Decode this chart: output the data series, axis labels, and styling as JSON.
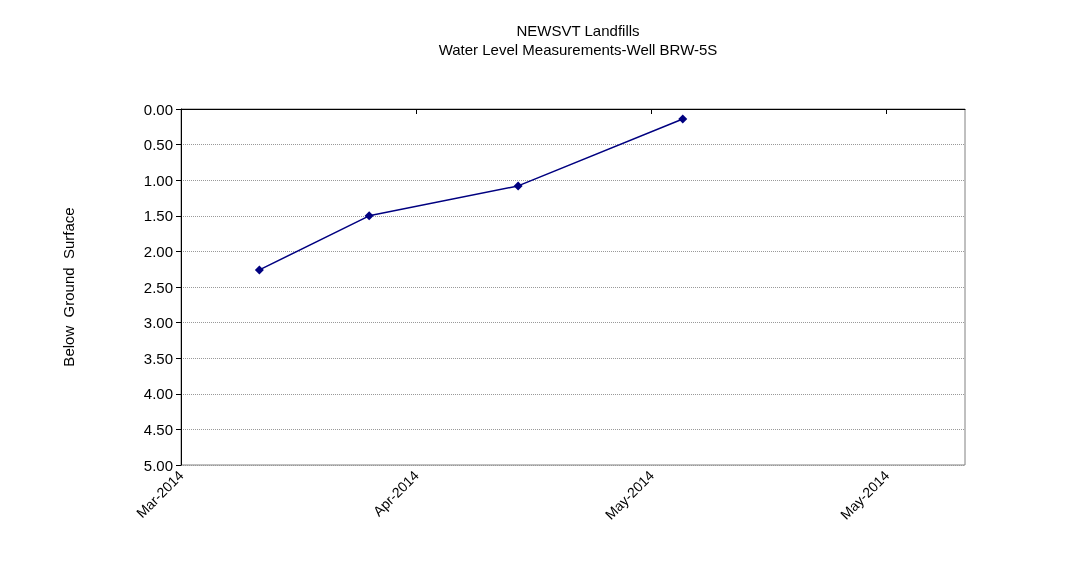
{
  "chart_data": {
    "type": "line",
    "title": "NEWSVT Landfills",
    "subtitle": "Water Level Measurements-Well BRW-5S",
    "ylabel": "Below  Ground  Surface",
    "x": [
      "2014-03-12",
      "2014-03-26",
      "2014-04-14",
      "2014-05-05"
    ],
    "series": [
      {
        "color": "#000080",
        "values": [
          2.26,
          1.5,
          1.08,
          0.14
        ]
      }
    ],
    "xlim": [
      "2014-03-02",
      "2014-06-10"
    ],
    "xticks": [
      {
        "value": "2014-03-02",
        "label": "Mar-2014"
      },
      {
        "value": "2014-04-01",
        "label": "Apr-2014"
      },
      {
        "value": "2014-05-01",
        "label": "May-2014"
      },
      {
        "value": "2014-05-31",
        "label": "May-2014"
      }
    ],
    "ylim": [
      5,
      0
    ],
    "yticks": [
      {
        "value": 0,
        "label": "0.00"
      },
      {
        "value": 0.5,
        "label": "0.50"
      },
      {
        "value": 1,
        "label": "1.00"
      },
      {
        "value": 1.5,
        "label": "1.50"
      },
      {
        "value": 2,
        "label": "2.00"
      },
      {
        "value": 2.5,
        "label": "2.50"
      },
      {
        "value": 3,
        "label": "3.00"
      },
      {
        "value": 3.5,
        "label": "3.50"
      },
      {
        "value": 4,
        "label": "4.00"
      },
      {
        "value": 4.5,
        "label": "4.50"
      },
      {
        "value": 5,
        "label": "5.00"
      }
    ],
    "grid": "y",
    "marker": "diamond",
    "line_style": "solid"
  }
}
